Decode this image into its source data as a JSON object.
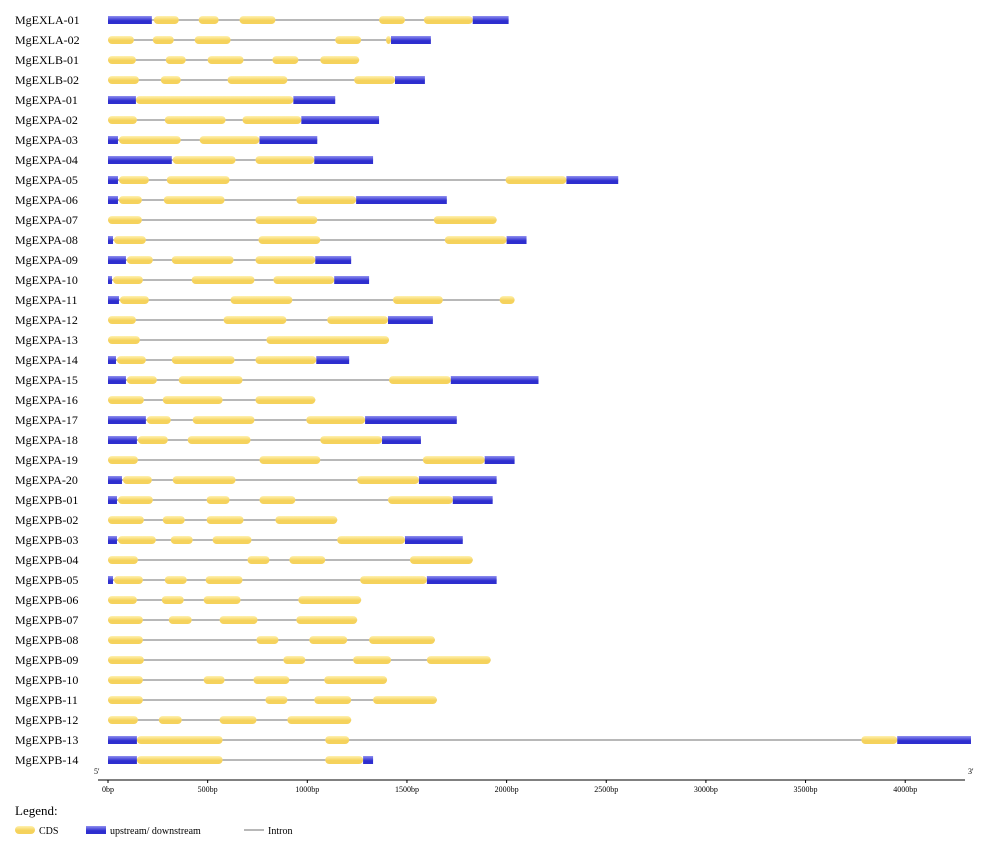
{
  "chart_data": {
    "type": "gene_structure",
    "x_unit": "bp",
    "xlim": [
      0,
      4300
    ],
    "ticks": [
      {
        "value": 0,
        "label": "0bp"
      },
      {
        "value": 500,
        "label": "500bp"
      },
      {
        "value": 1000,
        "label": "1000bp"
      },
      {
        "value": 1500,
        "label": "1500bp"
      },
      {
        "value": 2000,
        "label": "2000bp"
      },
      {
        "value": 2500,
        "label": "2500bp"
      },
      {
        "value": 3000,
        "label": "3000bp"
      },
      {
        "value": 3500,
        "label": "3500bp"
      },
      {
        "value": 4000,
        "label": "4000bp"
      }
    ],
    "end_labels": {
      "five_prime": "5'",
      "three_prime": "3'"
    },
    "colors": {
      "cds": "#f5d25c",
      "cds_light": "#fff2b0",
      "utr": "#2e2ecf",
      "utr_light": "#8f8ff0",
      "intron": "#707070"
    },
    "genes": [
      {
        "name": "MgEXLA-01",
        "length": 2010,
        "utr": [
          [
            0,
            220
          ],
          [
            1830,
            2010
          ]
        ],
        "cds": [
          [
            230,
            355
          ],
          [
            455,
            555
          ],
          [
            660,
            840
          ],
          [
            1360,
            1490
          ],
          [
            1585,
            1830
          ]
        ]
      },
      {
        "name": "MgEXLA-02",
        "length": 1620,
        "utr": [
          [
            1420,
            1620
          ]
        ],
        "cds": [
          [
            0,
            130
          ],
          [
            225,
            330
          ],
          [
            435,
            615
          ],
          [
            1140,
            1270
          ],
          [
            1395,
            1420
          ]
        ]
      },
      {
        "name": "MgEXLB-01",
        "length": 1260,
        "cds": [
          [
            0,
            140
          ],
          [
            290,
            390
          ],
          [
            500,
            680
          ],
          [
            825,
            955
          ],
          [
            1065,
            1260
          ]
        ]
      },
      {
        "name": "MgEXLB-02",
        "length": 1590,
        "utr": [
          [
            1440,
            1590
          ]
        ],
        "cds": [
          [
            0,
            155
          ],
          [
            265,
            365
          ],
          [
            600,
            900
          ],
          [
            1235,
            1440
          ]
        ]
      },
      {
        "name": "MgEXPA-01",
        "length": 1140,
        "utr": [
          [
            0,
            140
          ],
          [
            930,
            1140
          ]
        ],
        "cds": [
          [
            140,
            930
          ]
        ]
      },
      {
        "name": "MgEXPA-02",
        "length": 1360,
        "utr": [
          [
            970,
            1360
          ]
        ],
        "cds": [
          [
            0,
            145
          ],
          [
            285,
            590
          ],
          [
            675,
            970
          ]
        ]
      },
      {
        "name": "MgEXPA-03",
        "length": 1050,
        "utr": [
          [
            0,
            50
          ],
          [
            760,
            1050
          ]
        ],
        "cds": [
          [
            55,
            365
          ],
          [
            460,
            760
          ]
        ]
      },
      {
        "name": "MgEXPA-04",
        "length": 1330,
        "utr": [
          [
            0,
            320
          ],
          [
            1035,
            1330
          ]
        ],
        "cds": [
          [
            325,
            640
          ],
          [
            740,
            1035
          ]
        ]
      },
      {
        "name": "MgEXPA-05",
        "length": 2560,
        "utr": [
          [
            0,
            50
          ],
          [
            2300,
            2560
          ]
        ],
        "cds": [
          [
            55,
            205
          ],
          [
            295,
            610
          ],
          [
            1995,
            2300
          ]
        ]
      },
      {
        "name": "MgEXPA-06",
        "length": 1700,
        "utr": [
          [
            0,
            50
          ],
          [
            1245,
            1700
          ]
        ],
        "cds": [
          [
            55,
            170
          ],
          [
            280,
            585
          ],
          [
            945,
            1245
          ]
        ]
      },
      {
        "name": "MgEXPA-07",
        "length": 1950,
        "cds": [
          [
            0,
            170
          ],
          [
            740,
            1050
          ],
          [
            1635,
            1950
          ]
        ]
      },
      {
        "name": "MgEXPA-08",
        "length": 2100,
        "utr": [
          [
            0,
            25
          ],
          [
            2000,
            2100
          ]
        ],
        "cds": [
          [
            30,
            190
          ],
          [
            755,
            1065
          ],
          [
            1690,
            2000
          ]
        ]
      },
      {
        "name": "MgEXPA-09",
        "length": 1220,
        "utr": [
          [
            0,
            90
          ],
          [
            1040,
            1220
          ]
        ],
        "cds": [
          [
            95,
            225
          ],
          [
            320,
            630
          ],
          [
            740,
            1040
          ]
        ]
      },
      {
        "name": "MgEXPA-10",
        "length": 1310,
        "utr": [
          [
            0,
            20
          ],
          [
            1135,
            1310
          ]
        ],
        "cds": [
          [
            25,
            175
          ],
          [
            420,
            735
          ],
          [
            830,
            1135
          ]
        ]
      },
      {
        "name": "MgEXPA-11",
        "length": 2040,
        "utr": [
          [
            0,
            55
          ]
        ],
        "cds": [
          [
            60,
            205
          ],
          [
            615,
            925
          ],
          [
            1430,
            1680
          ],
          [
            1965,
            2040
          ]
        ]
      },
      {
        "name": "MgEXPA-12",
        "length": 1630,
        "utr": [
          [
            1405,
            1630
          ]
        ],
        "cds": [
          [
            0,
            140
          ],
          [
            580,
            895
          ],
          [
            1100,
            1405
          ]
        ]
      },
      {
        "name": "MgEXPA-13",
        "length": 1410,
        "cds": [
          [
            0,
            160
          ],
          [
            795,
            1410
          ]
        ]
      },
      {
        "name": "MgEXPA-14",
        "length": 1210,
        "utr": [
          [
            0,
            40
          ],
          [
            1045,
            1210
          ]
        ],
        "cds": [
          [
            45,
            190
          ],
          [
            320,
            635
          ],
          [
            740,
            1045
          ]
        ]
      },
      {
        "name": "MgEXPA-15",
        "length": 2160,
        "utr": [
          [
            0,
            90
          ],
          [
            1720,
            2160
          ]
        ],
        "cds": [
          [
            95,
            245
          ],
          [
            355,
            675
          ],
          [
            1410,
            1720
          ]
        ]
      },
      {
        "name": "MgEXPA-16",
        "length": 1040,
        "cds": [
          [
            0,
            180
          ],
          [
            275,
            575
          ],
          [
            740,
            1040
          ]
        ]
      },
      {
        "name": "MgEXPA-17",
        "length": 1750,
        "utr": [
          [
            0,
            190
          ],
          [
            1290,
            1750
          ]
        ],
        "cds": [
          [
            195,
            315
          ],
          [
            425,
            735
          ],
          [
            995,
            1290
          ]
        ]
      },
      {
        "name": "MgEXPA-18",
        "length": 1570,
        "utr": [
          [
            0,
            145
          ],
          [
            1375,
            1570
          ]
        ],
        "cds": [
          [
            150,
            300
          ],
          [
            400,
            715
          ],
          [
            1065,
            1375
          ]
        ]
      },
      {
        "name": "MgEXPA-19",
        "length": 2040,
        "utr": [
          [
            1890,
            2040
          ]
        ],
        "cds": [
          [
            0,
            150
          ],
          [
            760,
            1065
          ],
          [
            1580,
            1890
          ]
        ]
      },
      {
        "name": "MgEXPA-20",
        "length": 1950,
        "utr": [
          [
            0,
            70
          ],
          [
            1560,
            1950
          ]
        ],
        "cds": [
          [
            75,
            220
          ],
          [
            325,
            640
          ],
          [
            1250,
            1560
          ]
        ]
      },
      {
        "name": "MgEXPB-01",
        "length": 1930,
        "utr": [
          [
            0,
            45
          ],
          [
            1730,
            1930
          ]
        ],
        "cds": [
          [
            50,
            225
          ],
          [
            495,
            610
          ],
          [
            760,
            940
          ],
          [
            1405,
            1730
          ]
        ]
      },
      {
        "name": "MgEXPB-02",
        "length": 1150,
        "cds": [
          [
            0,
            180
          ],
          [
            275,
            385
          ],
          [
            495,
            680
          ],
          [
            840,
            1150
          ]
        ]
      },
      {
        "name": "MgEXPB-03",
        "length": 1780,
        "utr": [
          [
            0,
            45
          ],
          [
            1490,
            1780
          ]
        ],
        "cds": [
          [
            50,
            240
          ],
          [
            315,
            425
          ],
          [
            525,
            720
          ],
          [
            1150,
            1490
          ]
        ]
      },
      {
        "name": "MgEXPB-04",
        "length": 1830,
        "cds": [
          [
            0,
            150
          ],
          [
            700,
            810
          ],
          [
            910,
            1090
          ],
          [
            1515,
            1830
          ]
        ]
      },
      {
        "name": "MgEXPB-05",
        "length": 1950,
        "utr": [
          [
            0,
            25
          ],
          [
            1600,
            1950
          ]
        ],
        "cds": [
          [
            30,
            175
          ],
          [
            285,
            395
          ],
          [
            490,
            675
          ],
          [
            1265,
            1600
          ]
        ]
      },
      {
        "name": "MgEXPB-06",
        "length": 1270,
        "cds": [
          [
            0,
            145
          ],
          [
            270,
            380
          ],
          [
            480,
            665
          ],
          [
            955,
            1270
          ]
        ]
      },
      {
        "name": "MgEXPB-07",
        "length": 1250,
        "cds": [
          [
            0,
            175
          ],
          [
            305,
            420
          ],
          [
            560,
            750
          ],
          [
            945,
            1250
          ]
        ]
      },
      {
        "name": "MgEXPB-08",
        "length": 1640,
        "cds": [
          [
            0,
            175
          ],
          [
            745,
            855
          ],
          [
            1010,
            1200
          ],
          [
            1310,
            1640
          ]
        ]
      },
      {
        "name": "MgEXPB-09",
        "length": 1920,
        "cds": [
          [
            0,
            180
          ],
          [
            880,
            990
          ],
          [
            1230,
            1420
          ],
          [
            1600,
            1920
          ]
        ]
      },
      {
        "name": "MgEXPB-10",
        "length": 1400,
        "cds": [
          [
            0,
            175
          ],
          [
            480,
            585
          ],
          [
            730,
            910
          ],
          [
            1085,
            1400
          ]
        ]
      },
      {
        "name": "MgEXPB-11",
        "length": 1650,
        "cds": [
          [
            0,
            175
          ],
          [
            790,
            900
          ],
          [
            1035,
            1220
          ],
          [
            1330,
            1650
          ]
        ]
      },
      {
        "name": "MgEXPB-12",
        "length": 1220,
        "cds": [
          [
            0,
            150
          ],
          [
            255,
            370
          ],
          [
            560,
            745
          ],
          [
            900,
            1220
          ]
        ]
      },
      {
        "name": "MgEXPB-13",
        "length": 4330,
        "utr": [
          [
            0,
            145
          ],
          [
            3960,
            4330
          ]
        ],
        "cds": [
          [
            145,
            575
          ],
          [
            1090,
            1210
          ],
          [
            3780,
            3960
          ]
        ]
      },
      {
        "name": "MgEXPB-14",
        "length": 1330,
        "utr": [
          [
            0,
            145
          ],
          [
            1280,
            1330
          ]
        ],
        "cds": [
          [
            145,
            575
          ],
          [
            1090,
            1280
          ]
        ]
      }
    ]
  },
  "legend": {
    "title": "Legend:",
    "items": [
      {
        "key": "cds",
        "label": "CDS"
      },
      {
        "key": "utr",
        "label": "upstream/ downstream"
      },
      {
        "key": "intron",
        "label": "Intron"
      }
    ]
  }
}
